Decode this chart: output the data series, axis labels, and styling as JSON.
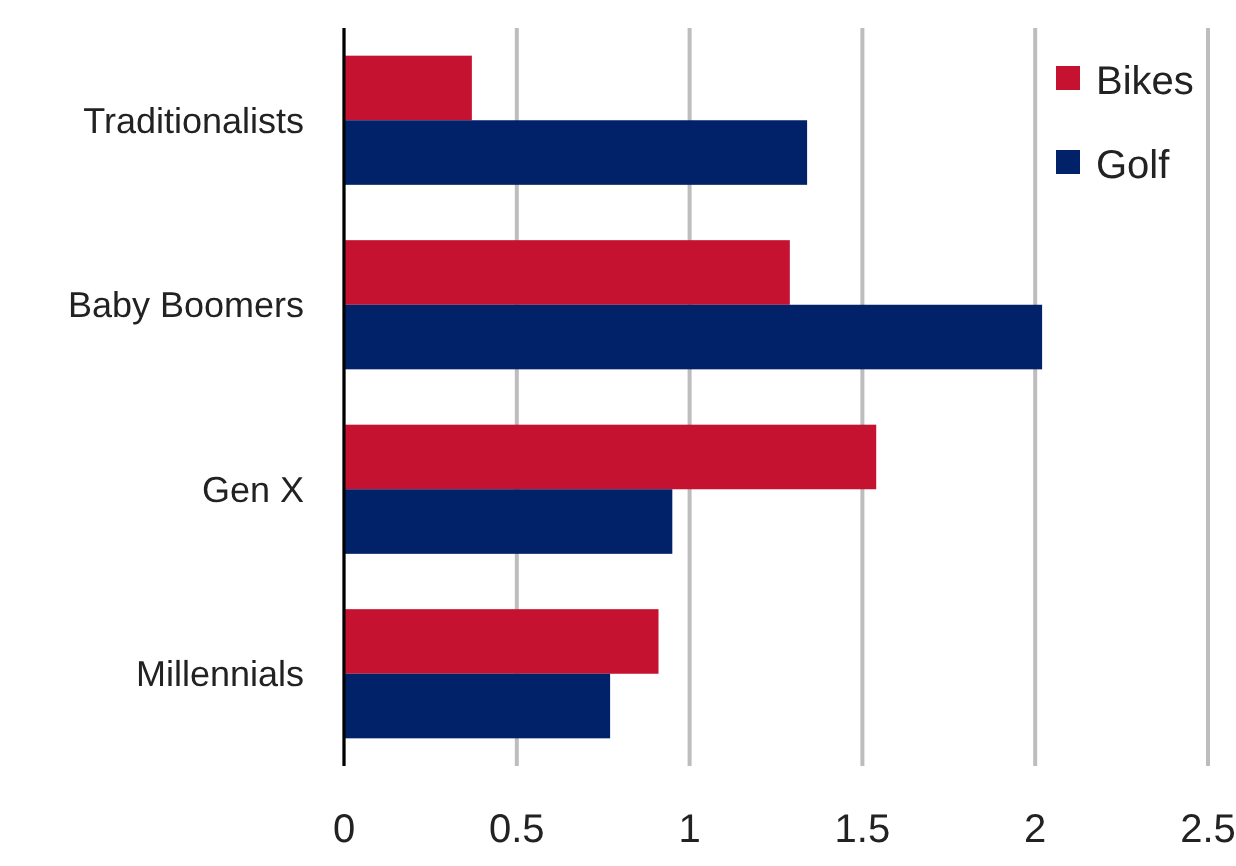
{
  "chart_data": {
    "type": "bar",
    "orientation": "horizontal",
    "categories": [
      "Traditionalists",
      "Baby Boomers",
      "Gen X",
      "Millennials"
    ],
    "series": [
      {
        "name": "Bikes",
        "color": "#c41230",
        "values": [
          0.37,
          1.29,
          1.54,
          0.91
        ]
      },
      {
        "name": "Golf",
        "color": "#012169",
        "values": [
          1.34,
          2.02,
          0.95,
          0.77
        ]
      }
    ],
    "xlim": [
      0,
      2.5
    ],
    "xticks": [
      0,
      0.5,
      1,
      1.5,
      2,
      2.5
    ],
    "grid": "x",
    "legend": "top right"
  }
}
